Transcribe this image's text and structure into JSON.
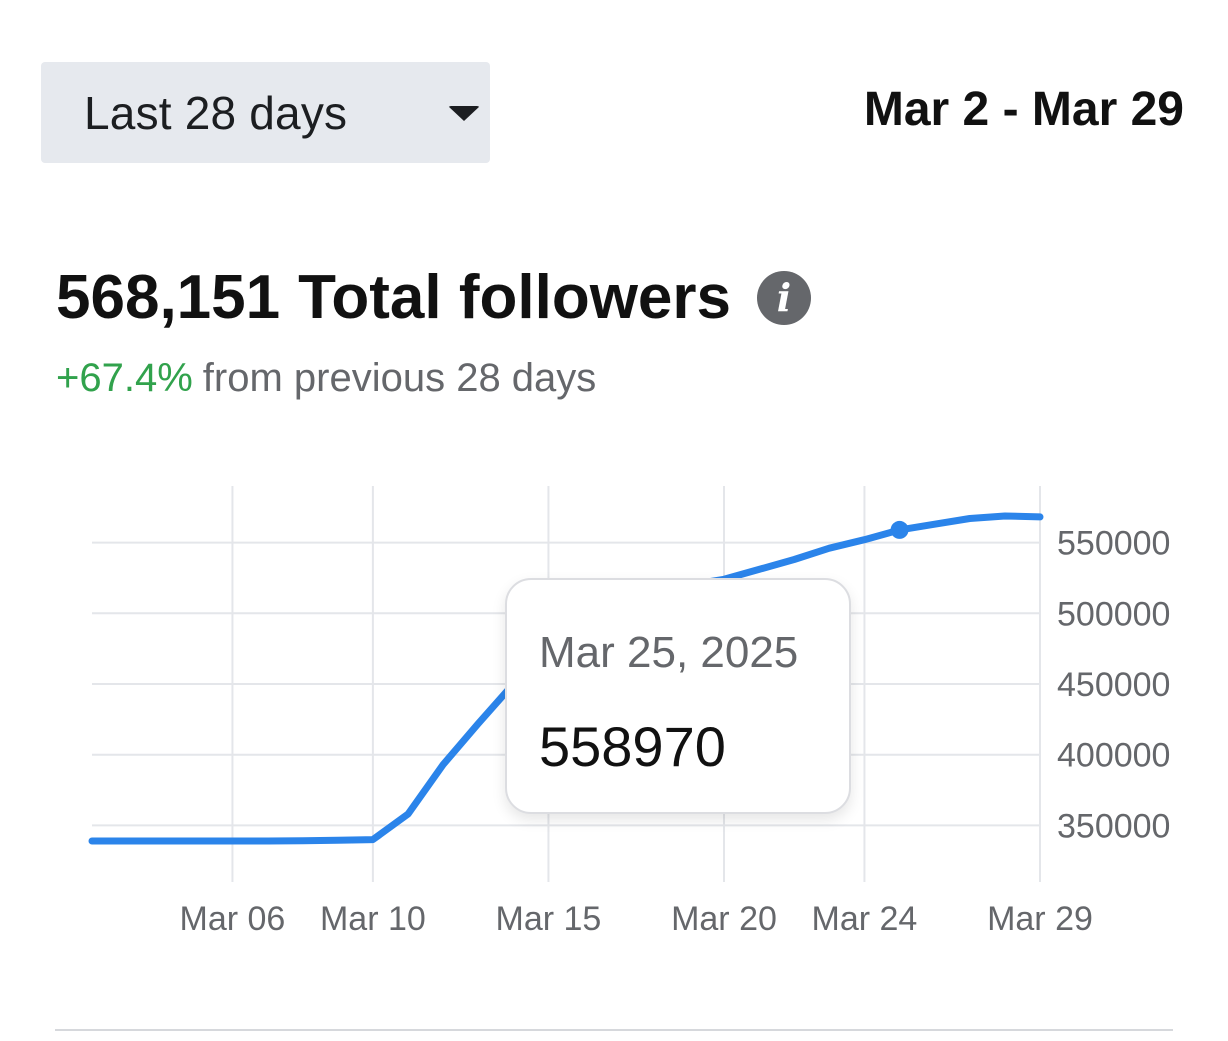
{
  "header": {
    "range_label": "Last 28 days",
    "date_range": "Mar 2 - Mar 29"
  },
  "summary": {
    "total_value": "568,151",
    "total_label": "Total followers",
    "change_value": "+67.4%",
    "change_text": "from previous 28 days",
    "change_color": "#31a24c"
  },
  "tooltip": {
    "date": "Mar 25, 2025",
    "value": "558970"
  },
  "chart_data": {
    "type": "line",
    "title": "",
    "xlabel": "",
    "ylabel": "",
    "x_ticks": [
      "Mar 06",
      "Mar 10",
      "Mar 15",
      "Mar 20",
      "Mar 24",
      "Mar 29"
    ],
    "y_ticks": [
      "550000",
      "500000",
      "450000",
      "400000",
      "350000"
    ],
    "ylim": [
      310000,
      590000
    ],
    "grid": true,
    "y_axis_position": "right",
    "series": [
      {
        "color": "#2b84ea",
        "x": [
          "Mar 2",
          "Mar 3",
          "Mar 4",
          "Mar 5",
          "Mar 6",
          "Mar 7",
          "Mar 8",
          "Mar 9",
          "Mar 10",
          "Mar 11",
          "Mar 12",
          "Mar 13",
          "Mar 14",
          "Mar 15",
          "Mar 16",
          "Mar 17",
          "Mar 18",
          "Mar 19",
          "Mar 20",
          "Mar 21",
          "Mar 22",
          "Mar 23",
          "Mar 24",
          "Mar 25",
          "Mar 26",
          "Mar 27",
          "Mar 28",
          "Mar 29"
        ],
        "values": [
          339000,
          339000,
          339000,
          339000,
          339000,
          339000,
          339200,
          339500,
          340000,
          358000,
          393000,
          422000,
          450000,
          474000,
          494000,
          508000,
          515000,
          520000,
          524000,
          531000,
          538000,
          546000,
          552000,
          558970,
          563000,
          567000,
          568800,
          568151
        ]
      }
    ],
    "highlight": {
      "x": "Mar 25",
      "value": 558970
    }
  }
}
